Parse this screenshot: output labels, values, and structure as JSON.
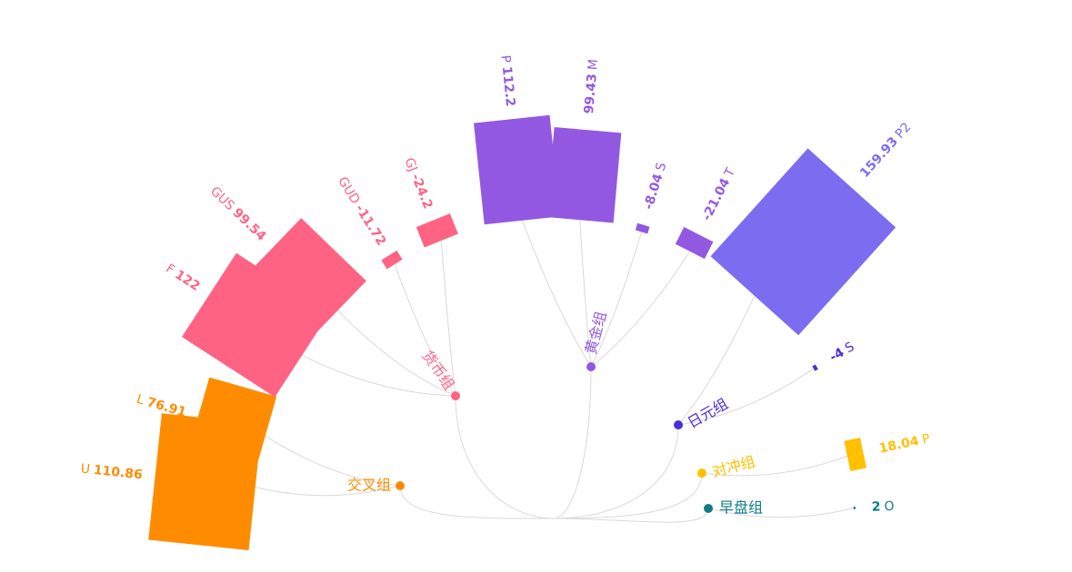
{
  "chart_data": {
    "type": "radial-tree-bar",
    "groups": [
      {
        "name": "交叉组",
        "color": "#ff8c00",
        "items": [
          {
            "label": "U",
            "value": 110.86
          },
          {
            "label": "L",
            "value": 76.91
          }
        ]
      },
      {
        "name": "货币组",
        "color": "#ff6384",
        "items": [
          {
            "label": "F",
            "value": 122
          },
          {
            "label": "GUS",
            "value": 99.54
          },
          {
            "label": "GUD",
            "value": -11.72
          },
          {
            "label": "GJ",
            "value": -24.2
          }
        ]
      },
      {
        "name": "黄金组",
        "color": "#9358e2",
        "items": [
          {
            "label": "P",
            "value": 112.2
          },
          {
            "label": "M",
            "value": 99.43
          },
          {
            "label": "S",
            "value": -8.04
          },
          {
            "label": "T",
            "value": -21.04
          }
        ]
      },
      {
        "name": "日元组",
        "color": "#7b6cf0",
        "nodeColor": "#4a2fd6",
        "items": [
          {
            "label": "P2",
            "value": 159.93
          },
          {
            "label": "S",
            "value": -4,
            "color": "#4a2fd6"
          }
        ]
      },
      {
        "name": "对冲组",
        "color": "#ffc000",
        "items": [
          {
            "label": "P",
            "value": 18.04
          }
        ]
      },
      {
        "name": "早盘组",
        "color": "#0e7c86",
        "items": [
          {
            "label": "O",
            "value": 2
          }
        ]
      }
    ]
  }
}
